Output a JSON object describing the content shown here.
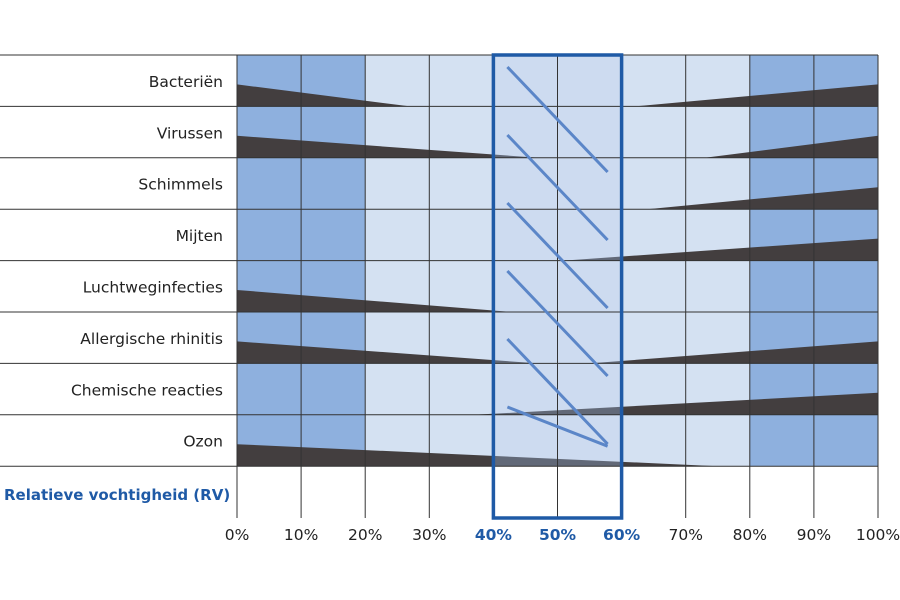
{
  "chart_data": {
    "type": "table",
    "xlabel": "Relatieve vochtigheid (RV)",
    "x_ticks": [
      "0%",
      "10%",
      "20%",
      "30%",
      "40%",
      "50%",
      "60%",
      "70%",
      "80%",
      "90%",
      "100%"
    ],
    "xlim": [
      0,
      100
    ],
    "optimal_range": [
      40,
      60
    ],
    "highlight_ticks": [
      "40%",
      "50%",
      "60%"
    ],
    "rows": [
      {
        "label": "Bacteriën",
        "left": {
          "from": 0,
          "to": 27
        },
        "right": {
          "from": 62,
          "to": 100
        }
      },
      {
        "label": "Virussen",
        "left": {
          "from": 0,
          "to": 47
        },
        "right": {
          "from": 73,
          "to": 100
        }
      },
      {
        "label": "Schimmels",
        "left": null,
        "right": {
          "from": 64,
          "to": 100
        }
      },
      {
        "label": "Mijten",
        "left": null,
        "right": {
          "from": 51,
          "to": 100
        }
      },
      {
        "label": "Luchtweginfecties",
        "left": {
          "from": 0,
          "to": 43
        },
        "right": null
      },
      {
        "label": "Allergische rhinitis",
        "left": {
          "from": 0,
          "to": 47
        },
        "right": {
          "from": 55,
          "to": 100
        }
      },
      {
        "label": "Chemische reacties",
        "left": null,
        "right": {
          "from": 37,
          "to": 100
        }
      },
      {
        "label": "Ozon",
        "left": {
          "from": 0,
          "to": 75
        },
        "right": null
      }
    ],
    "colors": {
      "dark_zone": "#8eb0de",
      "light_zone": "#d4e1f2",
      "optimal_zone": "#e6edf7",
      "wedge": "#433e3f",
      "frame": "#1f5aa6",
      "diagonal": "#5b86c8",
      "grid": "#333333"
    }
  }
}
